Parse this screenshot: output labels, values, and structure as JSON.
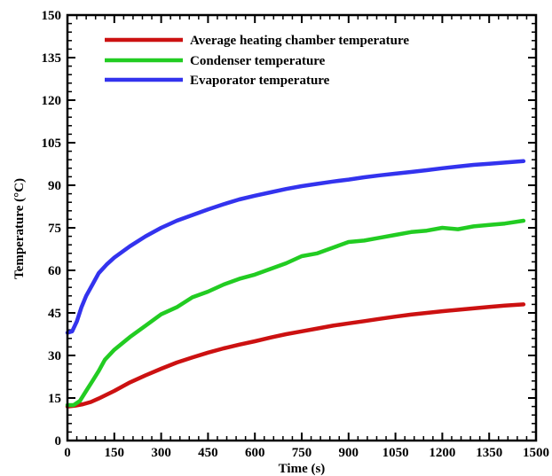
{
  "chart_data": {
    "type": "line",
    "xlabel": "Time (s)",
    "ylabel": "Temperature (°C)",
    "xlim": [
      0,
      1500
    ],
    "ylim": [
      0,
      150
    ],
    "xticks": [
      0,
      150,
      300,
      450,
      600,
      750,
      900,
      1050,
      1200,
      1350,
      1500
    ],
    "yticks": [
      0,
      15,
      30,
      45,
      60,
      75,
      90,
      105,
      120,
      135,
      150
    ],
    "grid": false,
    "legend_position": "top-left",
    "series": [
      {
        "name": "Average heating chamber temperature",
        "color": "#cc1111",
        "x": [
          0,
          25,
          50,
          75,
          100,
          150,
          200,
          250,
          300,
          350,
          400,
          450,
          500,
          550,
          600,
          650,
          700,
          750,
          800,
          850,
          900,
          950,
          1000,
          1050,
          1100,
          1150,
          1200,
          1250,
          1300,
          1350,
          1400,
          1460
        ],
        "y": [
          12,
          12.3,
          12.8,
          13.6,
          14.8,
          17.5,
          20.5,
          23,
          25.3,
          27.5,
          29.3,
          31,
          32.5,
          33.8,
          35,
          36.3,
          37.5,
          38.5,
          39.5,
          40.5,
          41.3,
          42.1,
          42.9,
          43.7,
          44.4,
          45,
          45.6,
          46.1,
          46.6,
          47.1,
          47.6,
          48
        ]
      },
      {
        "name": "Condenser temperature",
        "color": "#22cc22",
        "x": [
          0,
          20,
          40,
          60,
          80,
          100,
          120,
          150,
          200,
          250,
          300,
          350,
          400,
          450,
          500,
          550,
          600,
          650,
          700,
          750,
          800,
          850,
          900,
          950,
          1000,
          1050,
          1100,
          1150,
          1200,
          1250,
          1300,
          1350,
          1400,
          1460
        ],
        "y": [
          12.5,
          12.5,
          14,
          17.5,
          21,
          24.5,
          28.5,
          32,
          36.5,
          40.5,
          44.5,
          47,
          50.5,
          52.5,
          55,
          57,
          58.5,
          60.5,
          62.5,
          65,
          66,
          68,
          70,
          70.5,
          71.5,
          72.5,
          73.5,
          74,
          75,
          74.5,
          75.5,
          76,
          76.5,
          77.5
        ]
      },
      {
        "name": "Evaporator temperature",
        "color": "#3333ee",
        "x": [
          0,
          15,
          30,
          45,
          60,
          80,
          100,
          125,
          150,
          200,
          250,
          300,
          350,
          400,
          450,
          500,
          550,
          600,
          650,
          700,
          750,
          800,
          850,
          900,
          950,
          1000,
          1050,
          1100,
          1150,
          1200,
          1250,
          1300,
          1350,
          1400,
          1460
        ],
        "y": [
          38,
          38.5,
          42,
          47,
          51,
          55,
          59,
          62,
          64.5,
          68.5,
          72,
          75,
          77.5,
          79.5,
          81.5,
          83.3,
          85,
          86.3,
          87.5,
          88.7,
          89.7,
          90.5,
          91.3,
          92,
          92.8,
          93.5,
          94.1,
          94.7,
          95.3,
          96,
          96.6,
          97.2,
          97.6,
          98,
          98.5
        ]
      }
    ]
  }
}
